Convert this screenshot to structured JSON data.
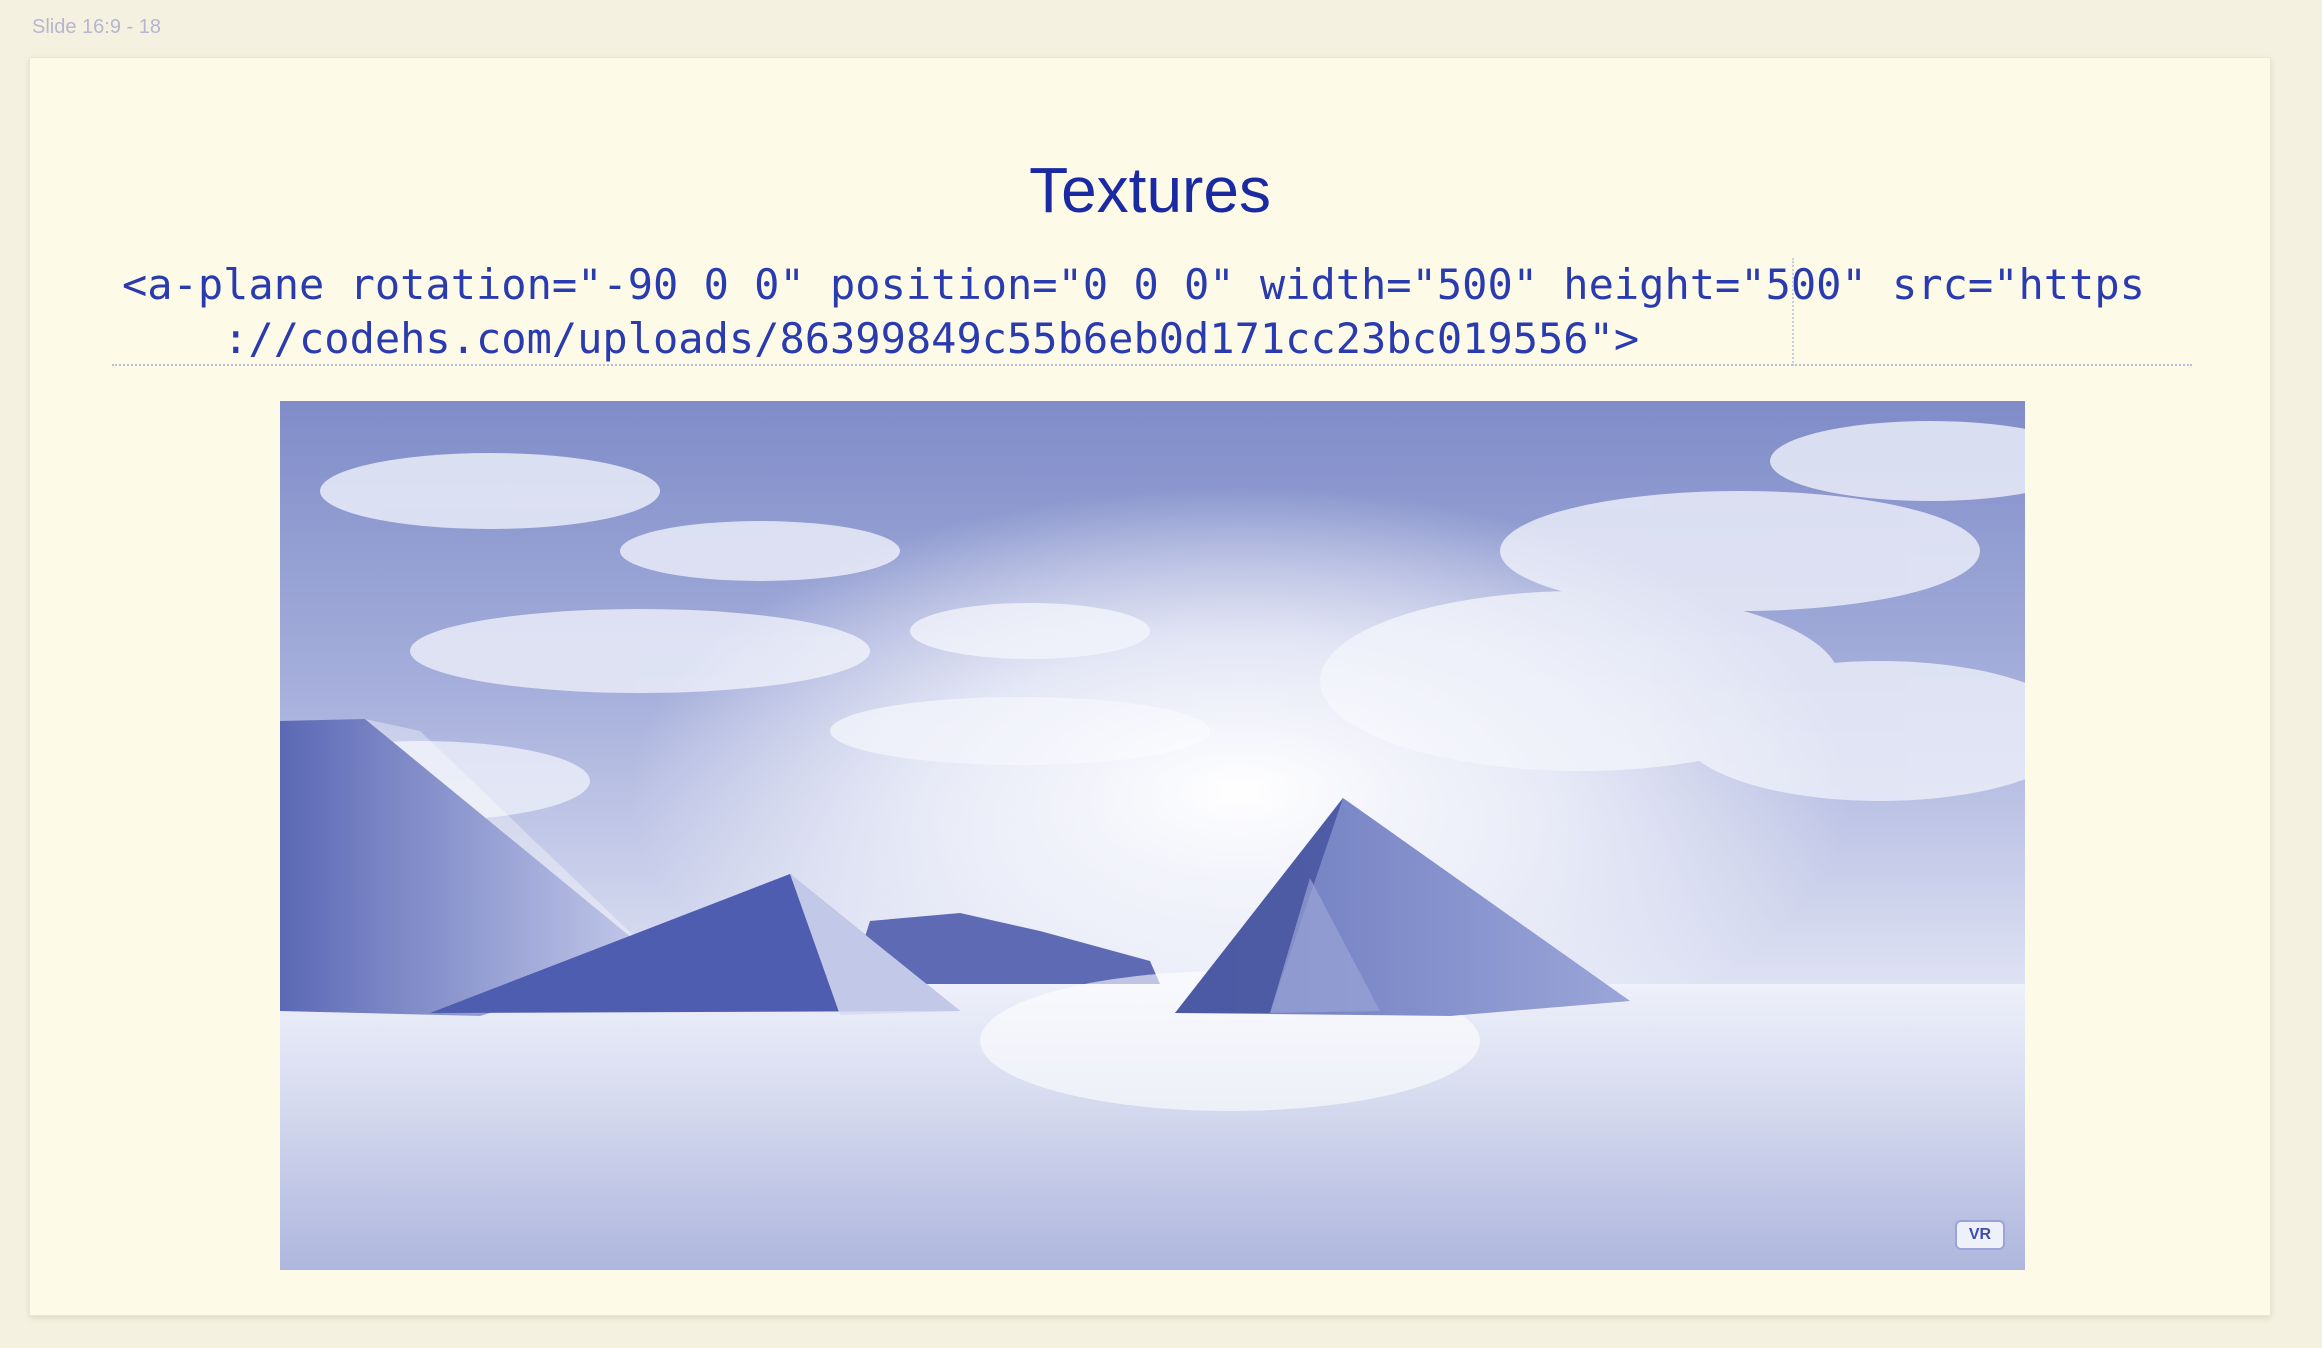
{
  "frame": {
    "label": "Slide 16:9 - 18"
  },
  "slide": {
    "title": "Textures",
    "code_line_1": "<a-plane rotation=\"-90 0 0\" position=\"0 0 0\" width=\"500\" height=\"500\" src=\"https",
    "code_line_2": "    ://codehs.com/uploads/86399849c55b6eb0d171cc23bc019556\">"
  },
  "scene": {
    "vr_button_label": "VR"
  }
}
